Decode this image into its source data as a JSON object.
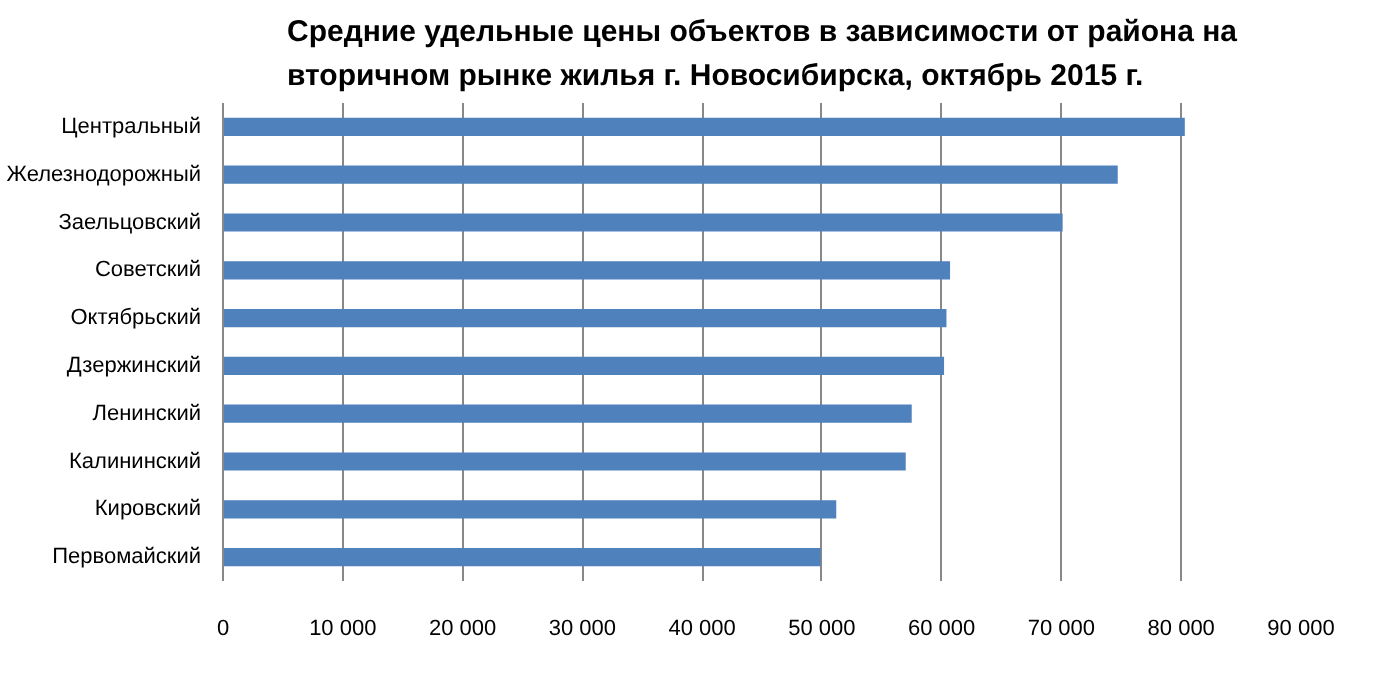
{
  "chart_data": {
    "type": "bar",
    "orientation": "horizontal",
    "title": "Средние удельные цены объектов в зависимости от района на\nвторичном рынке жилья г. Новосибирска, октябрь 2015 г.",
    "categories": [
      "Центральный",
      "Железнодорожный",
      "Заельцовский",
      "Советский",
      "Октябрьский",
      "Дзержинский",
      "Ленинский",
      "Калининский",
      "Кировский",
      "Первомайский"
    ],
    "values": [
      80300,
      74700,
      70100,
      60700,
      60400,
      60200,
      57500,
      57000,
      51200,
      49900
    ],
    "color": "#4f81bd",
    "xlim": [
      0,
      90000
    ],
    "xticks": [
      0,
      {
        "value": 10000,
        "label": "10 000"
      },
      {
        "value": 20000,
        "label": "20 000"
      },
      {
        "value": 30000,
        "label": "30 000"
      },
      {
        "value": 40000,
        "label": "40 000"
      },
      {
        "value": 50000,
        "label": "50 000"
      },
      {
        "value": 60000,
        "label": "60 000"
      },
      {
        "value": 70000,
        "label": "70 000"
      },
      {
        "value": 80000,
        "label": "80 000"
      },
      {
        "value": 90000,
        "label": "90 000"
      }
    ],
    "grid": "x"
  }
}
